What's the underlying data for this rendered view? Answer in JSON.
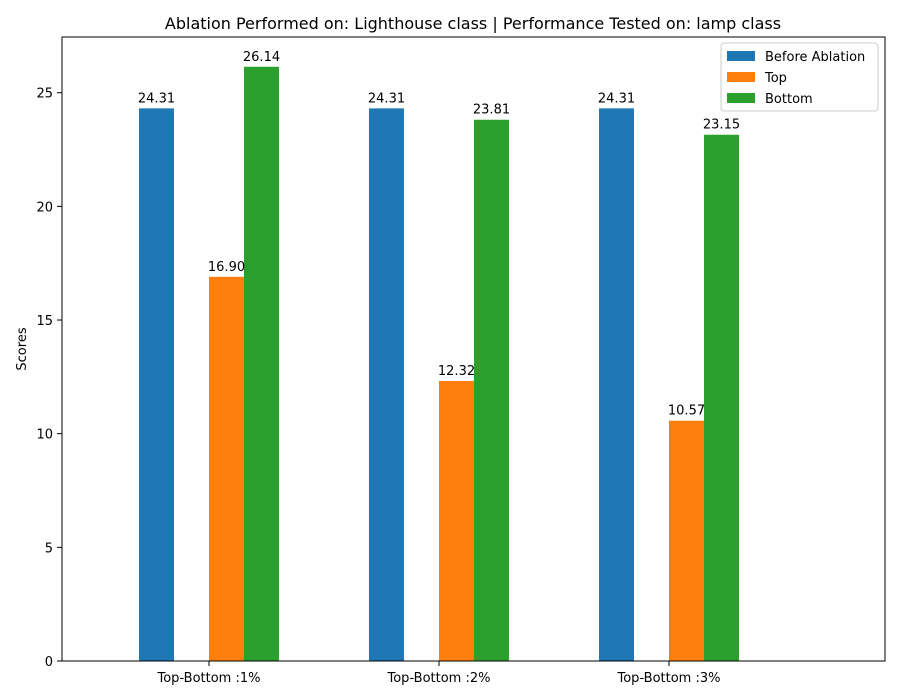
{
  "chart_data": {
    "type": "bar",
    "title": "Ablation Performed on: Lighthouse class | Performance Tested on: lamp class",
    "xlabel": "",
    "ylabel": "Scores",
    "categories": [
      "Top-Bottom :1%",
      "Top-Bottom :2%",
      "Top-Bottom :3%"
    ],
    "series": [
      {
        "name": "Before Ablation",
        "color": "#1f77b4",
        "values": [
          24.31,
          24.31,
          24.31
        ],
        "labels": [
          "24.31",
          "24.31",
          "24.31"
        ]
      },
      {
        "name": "Top",
        "color": "#ff7f0e",
        "values": [
          16.9,
          12.32,
          10.57
        ],
        "labels": [
          "16.90",
          "12.32",
          "10.57"
        ]
      },
      {
        "name": "Bottom",
        "color": "#2ca02c",
        "values": [
          26.14,
          23.81,
          23.15
        ],
        "labels": [
          "26.14",
          "23.81",
          "23.15"
        ]
      }
    ],
    "ylim": [
      0,
      27.45
    ],
    "yticks": [
      0,
      5,
      10,
      15,
      20,
      25
    ],
    "grid": false,
    "legend_position": "top-right"
  }
}
